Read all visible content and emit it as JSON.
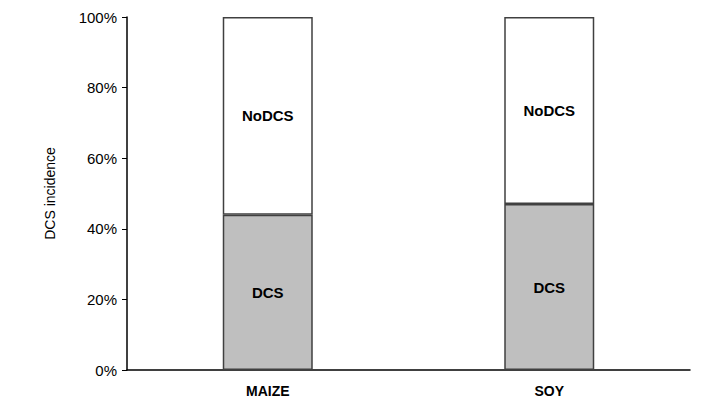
{
  "chart_data": {
    "type": "bar",
    "stacked": true,
    "ylabel": "DCS incidence",
    "categories": [
      "MAIZE",
      "SOY"
    ],
    "series": [
      {
        "name": "DCS",
        "color": "#bfbfbf",
        "values": [
          44,
          47
        ]
      },
      {
        "name": "NoDCS",
        "color": "#ffffff",
        "values": [
          56,
          53
        ]
      }
    ],
    "ylim": [
      0,
      100
    ],
    "yticks": [
      {
        "value": 0,
        "label": "0%"
      },
      {
        "value": 20,
        "label": "20%"
      },
      {
        "value": 40,
        "label": "40%"
      },
      {
        "value": 60,
        "label": "60%"
      },
      {
        "value": 80,
        "label": "80%"
      },
      {
        "value": 100,
        "label": "100%"
      }
    ],
    "grid": false
  }
}
